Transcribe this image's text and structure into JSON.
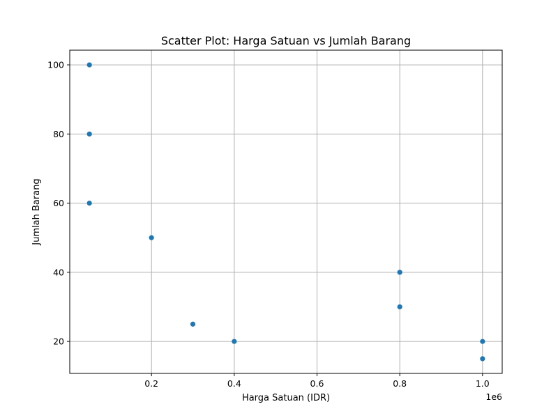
{
  "chart_data": {
    "type": "scatter",
    "title": "Scatter Plot: Harga Satuan vs Jumlah Barang",
    "xlabel": "Harga Satuan (IDR)",
    "ylabel": "Jumlah Barang",
    "x_offset_text": "1e6",
    "xlim": [
      0.0025,
      1.0475
    ],
    "ylim": [
      10.75,
      104.25
    ],
    "x_ticks": [
      0.2,
      0.4,
      0.6,
      0.8,
      1.0
    ],
    "x_tick_labels": [
      "0.2",
      "0.4",
      "0.6",
      "0.8",
      "1.0"
    ],
    "y_ticks": [
      20,
      40,
      60,
      80,
      100
    ],
    "y_tick_labels": [
      "20",
      "40",
      "60",
      "80",
      "100"
    ],
    "grid": true,
    "color": "#1f77b4",
    "points": [
      {
        "x": 0.05,
        "y": 100
      },
      {
        "x": 0.05,
        "y": 80
      },
      {
        "x": 0.05,
        "y": 60
      },
      {
        "x": 0.2,
        "y": 50
      },
      {
        "x": 0.3,
        "y": 25
      },
      {
        "x": 0.4,
        "y": 20
      },
      {
        "x": 0.8,
        "y": 40
      },
      {
        "x": 0.8,
        "y": 30
      },
      {
        "x": 1.0,
        "y": 20
      },
      {
        "x": 1.0,
        "y": 15
      }
    ]
  }
}
